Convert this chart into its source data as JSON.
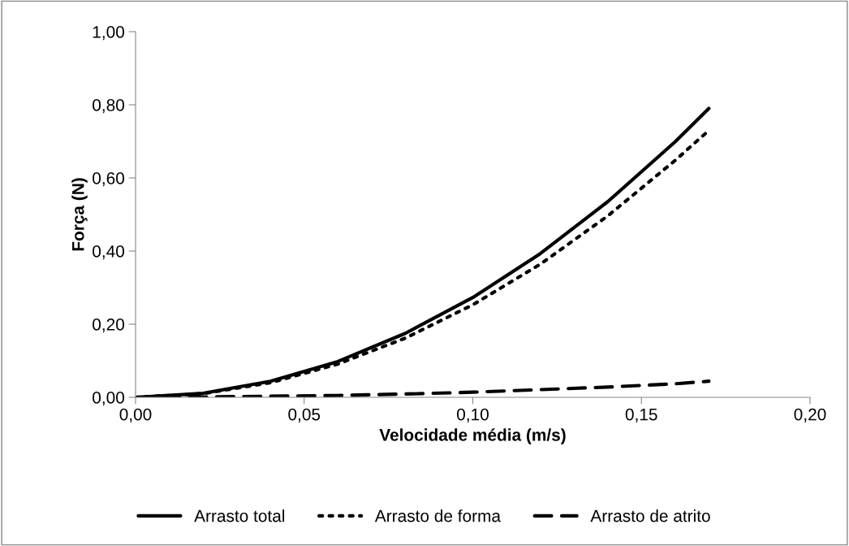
{
  "chart_data": {
    "type": "line",
    "xlabel": "Velocidade média (m/s)",
    "ylabel": "Força (N)",
    "x": [
      0,
      0.02,
      0.04,
      0.06,
      0.08,
      0.1,
      0.12,
      0.14,
      0.16,
      0.17
    ],
    "series": [
      {
        "name": "Arrasto total",
        "color": "#000000",
        "line_style": "solid",
        "values": [
          0,
          0.011,
          0.044,
          0.098,
          0.175,
          0.273,
          0.393,
          0.535,
          0.699,
          0.79
        ]
      },
      {
        "name": "Arrasto de forma",
        "color": "#000000",
        "line_style": "dotted",
        "values": [
          0,
          0.01,
          0.04,
          0.091,
          0.162,
          0.253,
          0.364,
          0.496,
          0.648,
          0.73
        ]
      },
      {
        "name": "Arrasto de atrito",
        "color": "#000000",
        "line_style": "dashed",
        "values": [
          0,
          0.001,
          0.003,
          0.005,
          0.009,
          0.014,
          0.021,
          0.028,
          0.037,
          0.044
        ]
      }
    ],
    "xlim": [
      0,
      0.2
    ],
    "ylim": [
      0,
      1
    ],
    "xticks": [
      {
        "value": 0,
        "label": "0,00"
      },
      {
        "value": 0.05,
        "label": "0,05"
      },
      {
        "value": 0.1,
        "label": "0,10"
      },
      {
        "value": 0.15,
        "label": "0,15"
      },
      {
        "value": 0.2,
        "label": "0,20"
      }
    ],
    "yticks": [
      {
        "value": 0,
        "label": "0,00"
      },
      {
        "value": 0.2,
        "label": "0,20"
      },
      {
        "value": 0.4,
        "label": "0,40"
      },
      {
        "value": 0.6,
        "label": "0,60"
      },
      {
        "value": 0.8,
        "label": "0,80"
      },
      {
        "value": 1,
        "label": "1,00"
      }
    ],
    "grid": false,
    "legend": "bottom",
    "marker": "none"
  }
}
